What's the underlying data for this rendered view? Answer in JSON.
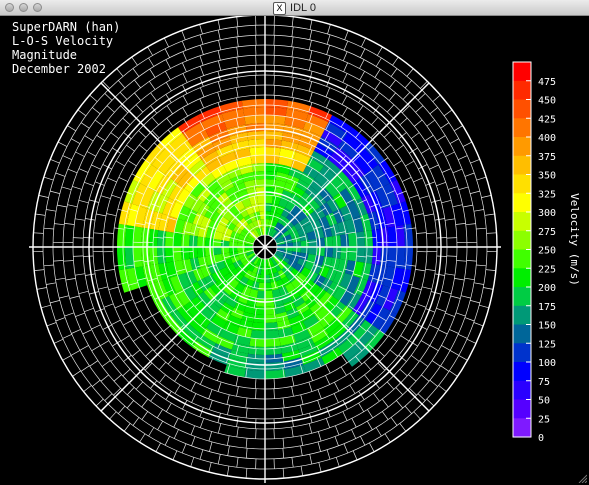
{
  "window": {
    "title": "IDL 0",
    "app_icon": "x11-icon"
  },
  "plot_header": {
    "line1": "SuperDARN (han)",
    "line2": "L-O-S Velocity",
    "line3": "Magnitude",
    "line4": "December 2002"
  },
  "colorbar": {
    "label": "Velocity (m/s)",
    "ticks": [
      "475",
      "450",
      "425",
      "400",
      "375",
      "350",
      "325",
      "300",
      "275",
      "250",
      "225",
      "200",
      "175",
      "150",
      "125",
      "100",
      "75",
      "50",
      "25",
      "0"
    ],
    "colors": [
      "#ff0000",
      "#ff2a00",
      "#ff5000",
      "#ff7500",
      "#ff9a00",
      "#ffbe00",
      "#ffe000",
      "#ffff00",
      "#c8ff00",
      "#8cff00",
      "#40ff00",
      "#00ee00",
      "#00cc44",
      "#009977",
      "#006699",
      "#0033cc",
      "#0000ff",
      "#2a00ff",
      "#5500ff",
      "#7f1aff"
    ]
  },
  "chart_data": {
    "type": "heatmap",
    "title": "SuperDARN (han) L-O-S Velocity Magnitude December 2002",
    "colorbar_label": "Velocity (m/s)",
    "value_range": [
      0,
      500
    ],
    "colorbar_ticks": [
      0,
      25,
      50,
      75,
      100,
      125,
      150,
      175,
      200,
      225,
      250,
      275,
      300,
      325,
      350,
      375,
      400,
      425,
      450,
      475
    ],
    "projection": "polar",
    "grid": true
  }
}
